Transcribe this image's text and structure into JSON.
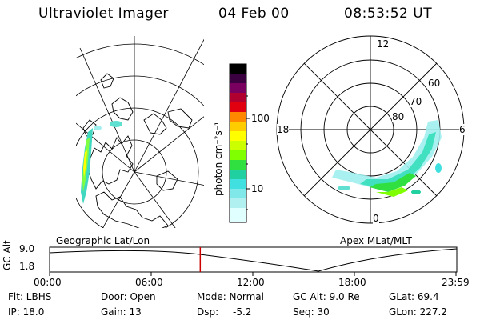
{
  "header": {
    "instrument": "Ultraviolet Imager",
    "date": "04 Feb 00",
    "time": "08:53:52 UT"
  },
  "colorbar": {
    "unit_label": "photon cm⁻²s⁻¹",
    "tick_labels": [
      "100",
      "10"
    ],
    "colors": [
      "#000000",
      "#3a0040",
      "#7a0060",
      "#b00030",
      "#e00010",
      "#ff4000",
      "#ff8800",
      "#ffcc00",
      "#ffff00",
      "#ccff00",
      "#80ff00",
      "#30e040",
      "#20d0a0",
      "#40e0e0",
      "#a0f0f0",
      "#e0ffff"
    ]
  },
  "geo_panel": {
    "label": "Geographic Lat/Lon"
  },
  "apex_panel": {
    "label": "Apex MLat/MLT",
    "mlt_labels": {
      "top": "12",
      "left": "18",
      "right": "6",
      "bottom": "0"
    },
    "mlat_labels": [
      "80",
      "70",
      "60"
    ]
  },
  "timeline": {
    "axis_label": "GC Alt",
    "y_labels": [
      "9.0",
      "1.8"
    ],
    "x_labels": [
      "00:00",
      "06:00",
      "12:00",
      "18:00",
      "23:59"
    ],
    "current_time_fraction": 0.3707,
    "marker_color": "#cc0000"
  },
  "info": {
    "filter": "Flt: LBHS",
    "door": "Door: Open",
    "mode": "Mode: Normal",
    "gc_alt": "GC Alt: 9.0 Re",
    "glat": "GLat:  69.4",
    "ip": "IP: 18.0",
    "gain": "Gain: 13",
    "dsp_label": "Dsp:",
    "dsp_value": "-5.2",
    "seq": "Seq: 30",
    "glon": "GLon: 227.2"
  }
}
